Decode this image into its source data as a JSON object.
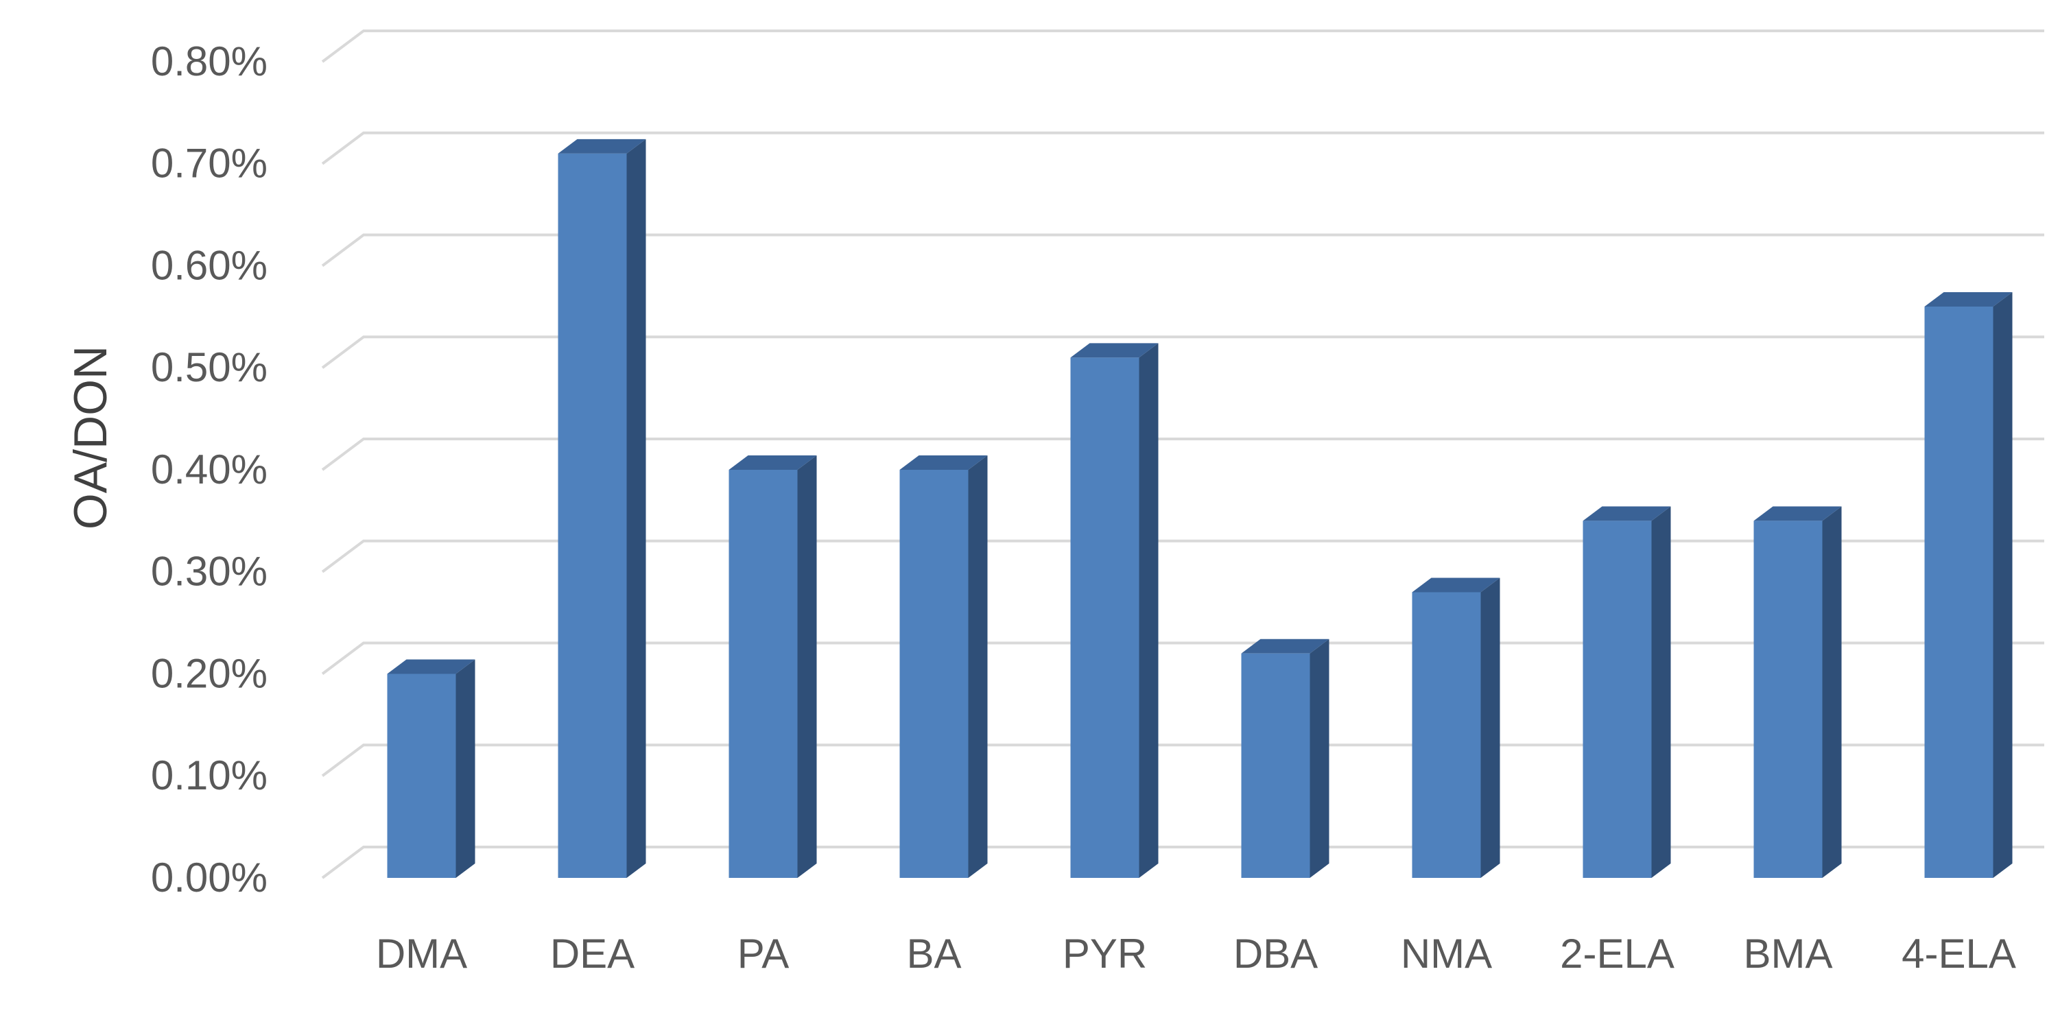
{
  "chart_data": {
    "type": "bar",
    "title": "",
    "xlabel": "",
    "ylabel": "OA/DON",
    "categories": [
      "DMA",
      "DEA",
      "PA",
      "BA",
      "PYR",
      "DBA",
      "NMA",
      "2-ELA",
      "BMA",
      "4-ELA"
    ],
    "values": [
      0.2,
      0.71,
      0.4,
      0.4,
      0.51,
      0.22,
      0.28,
      0.35,
      0.35,
      0.56
    ],
    "value_unit": "%",
    "ylim": [
      0,
      0.8
    ],
    "yticks": [
      0,
      0.1,
      0.2,
      0.3,
      0.4,
      0.5,
      0.6,
      0.7,
      0.8
    ],
    "ytick_labels": [
      "0.00%",
      "0.10%",
      "0.20%",
      "0.30%",
      "0.40%",
      "0.50%",
      "0.60%",
      "0.70%",
      "0.80%"
    ],
    "grid": true,
    "legend": "none",
    "style": "3d-column"
  },
  "colors": {
    "bar_front": "#4f81bd",
    "bar_side": "#2f4f78",
    "bar_top": "#3a6296",
    "grid": "#d9d9d9",
    "tick_text": "#595959",
    "axis_title_text": "#404040"
  }
}
